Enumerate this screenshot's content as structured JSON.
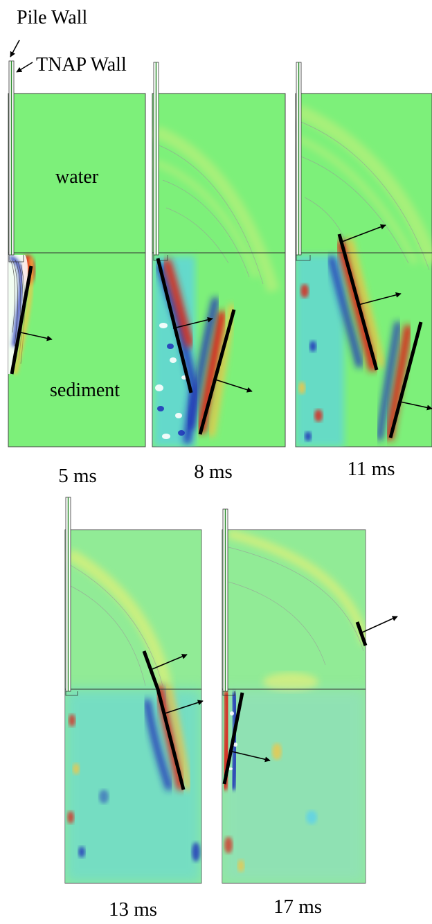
{
  "annotations": {
    "pile_wall": "Pile Wall",
    "tnap_wall": "TNAP Wall",
    "water": "water",
    "sediment": "sediment"
  },
  "colors": {
    "field_background": "#7df07a",
    "positive_peak": "#d9261c",
    "positive_mid": "#f5c542",
    "negative_peak": "#1f2fb8",
    "negative_mid": "#5ad0ee",
    "wavefront_line": "#000000",
    "pile_wall_green": "#2e8b2e"
  },
  "panels": [
    {
      "id": "p1",
      "time_label": "5 ms"
    },
    {
      "id": "p2",
      "time_label": "8 ms"
    },
    {
      "id": "p3",
      "time_label": "11 ms"
    },
    {
      "id": "p4",
      "time_label": "13 ms"
    },
    {
      "id": "p5",
      "time_label": "17 ms"
    }
  ]
}
